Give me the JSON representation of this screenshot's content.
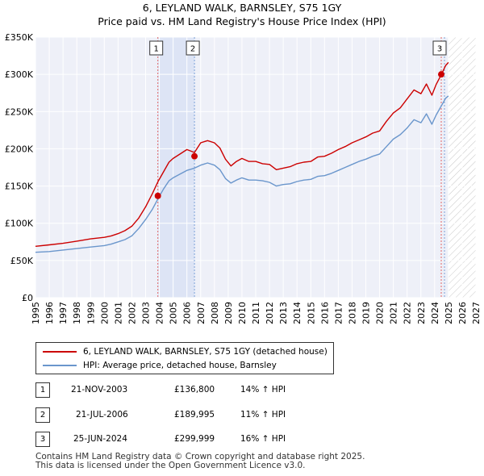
{
  "header": {
    "title": "6, LEYLAND WALK, BARNSLEY, S75 1GY",
    "subtitle": "Price paid vs. HM Land Registry's House Price Index (HPI)"
  },
  "chart_data": {
    "type": "line",
    "title": "Price paid vs. HM Land Registry's House Price Index (HPI)",
    "xlim": [
      1995,
      2027
    ],
    "ylim": [
      0,
      350000
    ],
    "y_ticks": [
      0,
      50000,
      100000,
      150000,
      200000,
      250000,
      300000,
      350000
    ],
    "y_tick_labels": [
      "£0",
      "£50K",
      "£100K",
      "£150K",
      "£200K",
      "£250K",
      "£300K",
      "£350K"
    ],
    "x_ticks": [
      1995,
      1996,
      1997,
      1998,
      1999,
      2000,
      2001,
      2002,
      2003,
      2004,
      2005,
      2006,
      2007,
      2008,
      2009,
      2010,
      2011,
      2012,
      2013,
      2014,
      2015,
      2016,
      2017,
      2018,
      2019,
      2020,
      2021,
      2022,
      2023,
      2024,
      2025,
      2026,
      2027
    ],
    "grid": true,
    "future_hatch_start": 2025.0,
    "highlight_band": [
      2003.9,
      2006.55
    ],
    "series": [
      {
        "name": "6, LEYLAND WALK, BARNSLEY, S75 1GY (detached house)",
        "color": "#cc0000",
        "x": [
          1995,
          1996,
          1997,
          1998,
          1999,
          2000,
          2000.5,
          2001,
          2001.5,
          2002,
          2002.5,
          2003,
          2003.5,
          2003.9,
          2004.3,
          2004.7,
          2005,
          2005.5,
          2006,
          2006.55,
          2007,
          2007.5,
          2008,
          2008.4,
          2008.8,
          2009.2,
          2009.6,
          2010,
          2010.5,
          2011,
          2011.5,
          2012,
          2012.5,
          2013,
          2013.5,
          2014,
          2014.5,
          2015,
          2015.5,
          2016,
          2016.5,
          2017,
          2017.5,
          2018,
          2018.5,
          2019,
          2019.5,
          2020,
          2020.5,
          2021,
          2021.5,
          2022,
          2022.5,
          2023,
          2023.4,
          2023.8,
          2024.1,
          2024.5,
          2024.8,
          2025
        ],
        "y": [
          69000,
          71000,
          73000,
          76000,
          79000,
          81000,
          83000,
          86000,
          90000,
          96000,
          107000,
          122000,
          140000,
          156000,
          169000,
          182000,
          187000,
          193000,
          199000,
          195000,
          208000,
          211000,
          208000,
          201000,
          186000,
          177000,
          183000,
          187000,
          183000,
          183000,
          180000,
          179000,
          172000,
          174000,
          176000,
          180000,
          182000,
          183000,
          189000,
          190000,
          194000,
          199000,
          203000,
          208000,
          212000,
          216000,
          221000,
          224000,
          237000,
          248000,
          255000,
          267000,
          279000,
          274000,
          287000,
          272000,
          286000,
          299999,
          312000,
          316000
        ]
      },
      {
        "name": "HPI: Average price, detached house, Barnsley",
        "color": "#6a96cc",
        "x": [
          1995,
          1996,
          1997,
          1998,
          1999,
          2000,
          2000.5,
          2001,
          2001.5,
          2002,
          2002.5,
          2003,
          2003.5,
          2003.9,
          2004.3,
          2004.7,
          2005,
          2005.5,
          2006,
          2006.55,
          2007,
          2007.5,
          2008,
          2008.4,
          2008.8,
          2009.2,
          2009.6,
          2010,
          2010.5,
          2011,
          2011.5,
          2012,
          2012.5,
          2013,
          2013.5,
          2014,
          2014.5,
          2015,
          2015.5,
          2016,
          2016.5,
          2017,
          2017.5,
          2018,
          2018.5,
          2019,
          2019.5,
          2020,
          2020.5,
          2021,
          2021.5,
          2022,
          2022.5,
          2023,
          2023.4,
          2023.8,
          2024.1,
          2024.5,
          2024.8,
          2025
        ],
        "y": [
          61000,
          62000,
          64000,
          66000,
          68000,
          70000,
          72000,
          75000,
          78000,
          83000,
          93000,
          105000,
          119000,
          133000,
          146000,
          157000,
          161000,
          166000,
          171000,
          174000,
          178000,
          181000,
          178000,
          172000,
          160000,
          154000,
          158000,
          161000,
          158000,
          158000,
          157000,
          155000,
          150000,
          152000,
          153000,
          156000,
          158000,
          159000,
          163000,
          164000,
          167000,
          171000,
          175000,
          179000,
          183000,
          186000,
          190000,
          193000,
          203000,
          213000,
          219000,
          228000,
          239000,
          235000,
          247000,
          233000,
          245000,
          258000,
          268000,
          271000
        ]
      }
    ],
    "sale_markers": [
      {
        "label": "1",
        "x": 2003.89,
        "y": 136800
      },
      {
        "label": "2",
        "x": 2006.55,
        "y": 189995
      },
      {
        "label": "3",
        "x": 2024.48,
        "y": 299999
      }
    ]
  },
  "legend": {
    "items": [
      {
        "label": "6, LEYLAND WALK, BARNSLEY, S75 1GY (detached house)",
        "color": "#cc0000"
      },
      {
        "label": "HPI: Average price, detached house, Barnsley",
        "color": "#6a96cc"
      }
    ]
  },
  "sales": [
    {
      "num": "1",
      "date": "21-NOV-2003",
      "price": "£136,800",
      "hpi": "14% ↑ HPI"
    },
    {
      "num": "2",
      "date": "21-JUL-2006",
      "price": "£189,995",
      "hpi": "11% ↑ HPI"
    },
    {
      "num": "3",
      "date": "25-JUN-2024",
      "price": "£299,999",
      "hpi": "16% ↑ HPI"
    }
  ],
  "footer": {
    "line1": "Contains HM Land Registry data © Crown copyright and database right 2025.",
    "line2": "This data is licensed under the Open Government Licence v3.0."
  }
}
